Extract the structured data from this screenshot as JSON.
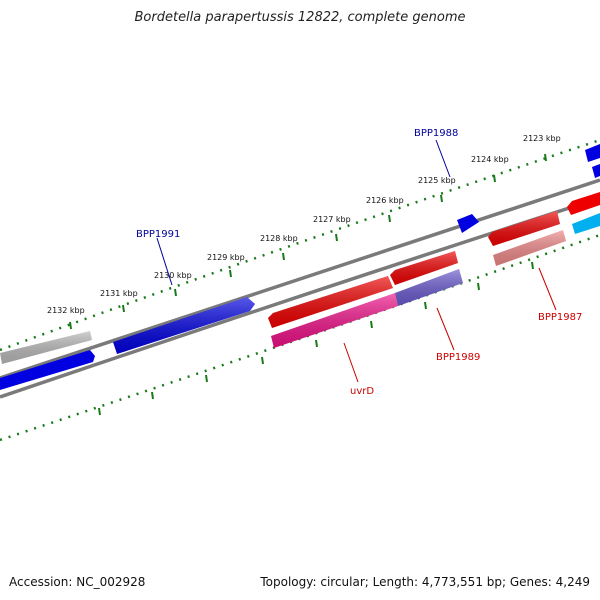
{
  "title": "Bordetella parapertussis 12822, complete genome",
  "footer": {
    "accession": "Accession: NC_002928",
    "summary": "Topology: circular; Length: 4,773,551 bp; Genes: 4,249"
  },
  "ticks": [
    "2132 kbp",
    "2131 kbp",
    "2130 kbp",
    "2129 kbp",
    "2128 kbp",
    "2127 kbp",
    "2126 kbp",
    "2125 kbp",
    "2124 kbp",
    "2123 kbp"
  ],
  "genes": {
    "bpp1991": "BPP1991",
    "bpp1988": "BPP1988",
    "bpp1989": "BPP1989",
    "bpp1987": "BPP1987",
    "uvrd": "uvrD"
  },
  "colors": {
    "forward_strand": "#0000e0",
    "reverse_strand": "#ee0000",
    "light_red": "#ee8888",
    "magenta": "#ee1188",
    "purple": "#6a5acd",
    "cyan": "#00b0ee",
    "grey": "#b8b8b8",
    "backbone": "#808080",
    "tick_green": "#1a7a1a",
    "forward_label": "#000099",
    "reverse_label": "#cc0000"
  }
}
